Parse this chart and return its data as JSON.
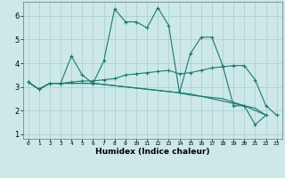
{
  "title": "",
  "xlabel": "Humidex (Indice chaleur)",
  "background_color": "#cce8e8",
  "grid_color": "#aacccc",
  "line_color": "#1a7a6e",
  "xlim": [
    -0.5,
    23.5
  ],
  "ylim": [
    0.8,
    6.6
  ],
  "xticks": [
    0,
    1,
    2,
    3,
    4,
    5,
    6,
    7,
    8,
    9,
    10,
    11,
    12,
    13,
    14,
    15,
    16,
    17,
    18,
    19,
    20,
    21,
    22,
    23
  ],
  "yticks": [
    1,
    2,
    3,
    4,
    5,
    6
  ],
  "series": [
    {
      "x": [
        0,
        1,
        2,
        3,
        4,
        5,
        6,
        7,
        8,
        9,
        10,
        11,
        12,
        13,
        14,
        15,
        16,
        17,
        18,
        19,
        20,
        21,
        22
      ],
      "y": [
        3.2,
        2.9,
        3.15,
        3.15,
        4.3,
        3.5,
        3.15,
        4.1,
        6.3,
        5.75,
        5.75,
        5.5,
        6.35,
        5.6,
        2.75,
        4.4,
        5.1,
        5.1,
        3.9,
        2.2,
        2.2,
        1.4,
        1.8
      ],
      "has_marker": true,
      "lw": 0.8
    },
    {
      "x": [
        0,
        1,
        2,
        3,
        4,
        5,
        6,
        7,
        8,
        9,
        10,
        11,
        12,
        13,
        14,
        15,
        16,
        17,
        18,
        19,
        20,
        21,
        22,
        23
      ],
      "y": [
        3.2,
        2.9,
        3.15,
        3.15,
        3.2,
        3.25,
        3.25,
        3.3,
        3.35,
        3.5,
        3.55,
        3.6,
        3.65,
        3.7,
        3.55,
        3.6,
        3.7,
        3.8,
        3.85,
        3.9,
        3.9,
        3.3,
        2.2,
        1.8
      ],
      "has_marker": true,
      "lw": 0.8
    },
    {
      "x": [
        0,
        1,
        2,
        3,
        4,
        5,
        6,
        7,
        8,
        9,
        10,
        11,
        12,
        13,
        14,
        15,
        16,
        17,
        18,
        19,
        20,
        21,
        22
      ],
      "y": [
        3.2,
        2.9,
        3.15,
        3.15,
        3.15,
        3.15,
        3.15,
        3.1,
        3.05,
        3.0,
        2.95,
        2.9,
        2.85,
        2.8,
        2.75,
        2.7,
        2.6,
        2.55,
        2.5,
        2.35,
        2.2,
        2.1,
        1.8
      ],
      "has_marker": false,
      "lw": 0.8
    },
    {
      "x": [
        0,
        1,
        2,
        3,
        4,
        5,
        6,
        7,
        8,
        9,
        10,
        11,
        12,
        13,
        14,
        15,
        16,
        17,
        18,
        19,
        20,
        21,
        22
      ],
      "y": [
        3.2,
        2.9,
        3.15,
        3.15,
        3.15,
        3.15,
        3.15,
        3.1,
        3.05,
        3.0,
        2.95,
        2.9,
        2.85,
        2.8,
        2.75,
        2.65,
        2.6,
        2.5,
        2.4,
        2.3,
        2.2,
        2.0,
        1.8
      ],
      "has_marker": false,
      "lw": 0.8
    }
  ]
}
